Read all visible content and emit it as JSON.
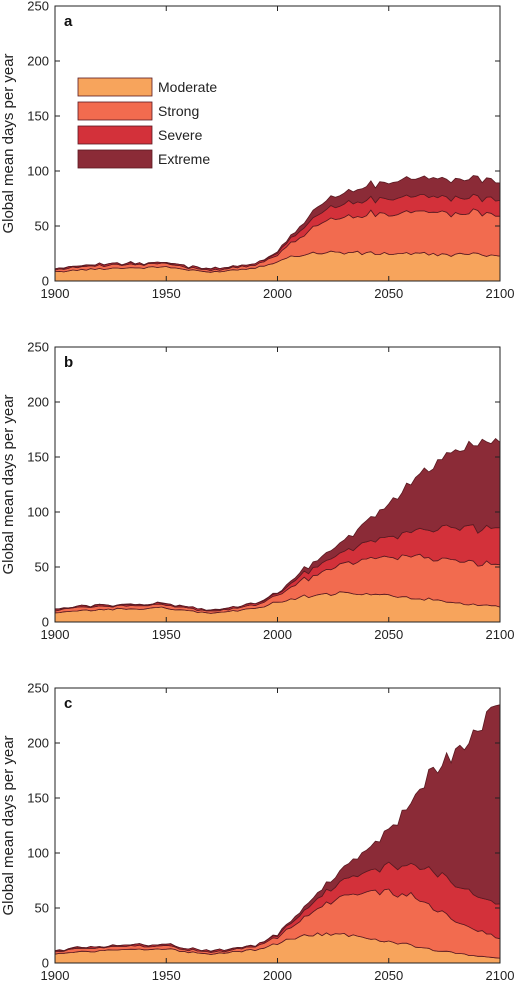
{
  "chart_data": [
    {
      "type": "area",
      "panel_label": "a",
      "ylabel": "Global mean days per year",
      "xlim": [
        1900,
        2100
      ],
      "ylim": [
        0,
        250
      ],
      "xticks": [
        "1900",
        "1950",
        "2000",
        "2050",
        "2100"
      ],
      "yticks": [
        "0",
        "50",
        "100",
        "150",
        "200",
        "250"
      ],
      "stacked": true,
      "legend": "upper-left",
      "x": [
        1900,
        1910,
        1920,
        1930,
        1940,
        1950,
        1960,
        1970,
        1980,
        1990,
        2000,
        2010,
        2020,
        2030,
        2040,
        2050,
        2060,
        2070,
        2080,
        2090,
        2100
      ],
      "series": [
        {
          "name": "Moderate",
          "color": "#F7A45C",
          "values": [
            8,
            10,
            11,
            12,
            12,
            13,
            10,
            8,
            10,
            12,
            18,
            24,
            26,
            26,
            25,
            25,
            25,
            24,
            24,
            24,
            24
          ]
        },
        {
          "name": "Strong",
          "color": "#F26B4F",
          "values": [
            2,
            3,
            3,
            3,
            3,
            3,
            2,
            2,
            2,
            3,
            6,
            16,
            28,
            32,
            35,
            37,
            38,
            38,
            38,
            38,
            38
          ]
        },
        {
          "name": "Severe",
          "color": "#D3313A",
          "values": [
            1,
            1,
            1,
            1,
            1,
            1,
            1,
            1,
            1,
            1,
            2,
            6,
            10,
            12,
            13,
            14,
            14,
            14,
            14,
            14,
            14
          ]
        },
        {
          "name": "Extreme",
          "color": "#8B2B37",
          "values": [
            0,
            0,
            0,
            0,
            0,
            0,
            0,
            0,
            0,
            0,
            1,
            4,
            8,
            10,
            13,
            15,
            16,
            17,
            17,
            17,
            17
          ]
        }
      ]
    },
    {
      "type": "area",
      "panel_label": "b",
      "ylabel": "Global mean days per year",
      "xlim": [
        1900,
        2100
      ],
      "ylim": [
        0,
        250
      ],
      "xticks": [
        "1900",
        "1950",
        "2000",
        "2050",
        "2100"
      ],
      "yticks": [
        "0",
        "50",
        "100",
        "150",
        "200",
        "250"
      ],
      "stacked": true,
      "x": [
        1900,
        1910,
        1920,
        1930,
        1940,
        1950,
        1960,
        1970,
        1980,
        1990,
        2000,
        2010,
        2020,
        2030,
        2040,
        2050,
        2060,
        2070,
        2080,
        2090,
        2100
      ],
      "series": [
        {
          "name": "Moderate",
          "color": "#F7A45C",
          "values": [
            8,
            10,
            11,
            12,
            12,
            13,
            10,
            8,
            10,
            12,
            18,
            23,
            25,
            26,
            25,
            24,
            22,
            20,
            17,
            15,
            14
          ]
        },
        {
          "name": "Strong",
          "color": "#F26B4F",
          "values": [
            2,
            3,
            3,
            3,
            3,
            3,
            2,
            2,
            2,
            3,
            6,
            14,
            20,
            26,
            32,
            35,
            38,
            38,
            38,
            38,
            38
          ]
        },
        {
          "name": "Severe",
          "color": "#D3313A",
          "values": [
            1,
            1,
            1,
            1,
            1,
            1,
            1,
            1,
            1,
            1,
            2,
            5,
            8,
            11,
            15,
            18,
            22,
            26,
            30,
            32,
            33
          ]
        },
        {
          "name": "Extreme",
          "color": "#8B2B37",
          "values": [
            0,
            0,
            0,
            0,
            0,
            0,
            0,
            0,
            0,
            0,
            1,
            3,
            6,
            10,
            18,
            30,
            45,
            60,
            68,
            78,
            82
          ]
        }
      ]
    },
    {
      "type": "area",
      "panel_label": "c",
      "ylabel": "Global mean days per year",
      "xlim": [
        1900,
        2100
      ],
      "ylim": [
        0,
        250
      ],
      "xticks": [
        "1900",
        "1950",
        "2000",
        "2050",
        "2100"
      ],
      "yticks": [
        "0",
        "50",
        "100",
        "150",
        "200",
        "250"
      ],
      "stacked": true,
      "x": [
        1900,
        1910,
        1920,
        1930,
        1940,
        1950,
        1960,
        1970,
        1980,
        1990,
        2000,
        2010,
        2020,
        2030,
        2040,
        2050,
        2060,
        2070,
        2080,
        2090,
        2100
      ],
      "series": [
        {
          "name": "Moderate",
          "color": "#F7A45C",
          "values": [
            8,
            10,
            11,
            12,
            12,
            13,
            10,
            8,
            10,
            12,
            18,
            24,
            26,
            26,
            23,
            20,
            16,
            12,
            9,
            6,
            4
          ]
        },
        {
          "name": "Strong",
          "color": "#F26B4F",
          "values": [
            2,
            3,
            3,
            3,
            3,
            3,
            2,
            2,
            2,
            3,
            6,
            14,
            25,
            35,
            42,
            46,
            45,
            38,
            30,
            23,
            18
          ]
        },
        {
          "name": "Severe",
          "color": "#D3313A",
          "values": [
            1,
            1,
            1,
            1,
            1,
            1,
            1,
            1,
            1,
            1,
            2,
            5,
            10,
            14,
            18,
            24,
            28,
            33,
            34,
            32,
            30
          ]
        },
        {
          "name": "Extreme",
          "color": "#8B2B37",
          "values": [
            0,
            0,
            0,
            0,
            0,
            0,
            0,
            0,
            0,
            0,
            1,
            3,
            6,
            11,
            20,
            32,
            58,
            92,
            120,
            152,
            178
          ]
        }
      ]
    }
  ]
}
